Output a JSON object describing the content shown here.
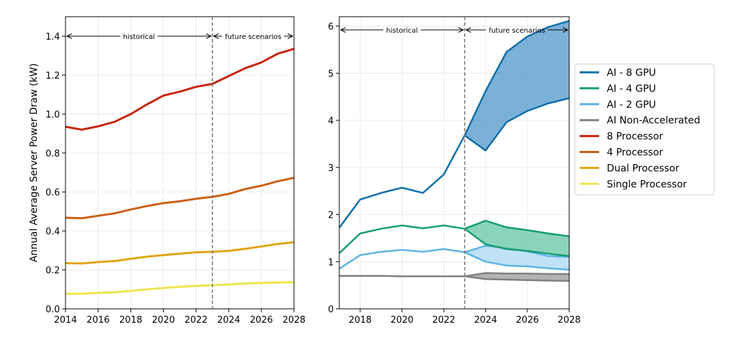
{
  "chart_data": [
    {
      "type": "line",
      "ylabel": "Annual Average Server Power Draw (kW)",
      "xlabel": "",
      "xlim": [
        2014,
        2028
      ],
      "ylim": [
        0,
        1.5
      ],
      "x_ticks": [
        "2014",
        "2016",
        "2018",
        "2020",
        "2022",
        "2024",
        "2026",
        "2028"
      ],
      "y_ticks": [
        "0.0",
        "0.2",
        "0.4",
        "0.6",
        "0.8",
        "1.0",
        "1.2",
        "1.4"
      ],
      "grid": true,
      "divider_x": 2023,
      "annotations": {
        "historical": "historical",
        "future": "future scenarios"
      },
      "x": [
        2014,
        2015,
        2016,
        2017,
        2018,
        2019,
        2020,
        2021,
        2022,
        2023,
        2024,
        2025,
        2026,
        2027,
        2028
      ],
      "series": [
        {
          "name": "8 Processor",
          "color": "#c8240e",
          "values": [
            0.935,
            0.92,
            0.937,
            0.96,
            1.0,
            1.05,
            1.095,
            1.115,
            1.14,
            1.155,
            1.195,
            1.235,
            1.265,
            1.31,
            1.335
          ]
        },
        {
          "name": "4 Processor",
          "color": "#cc5e14",
          "values": [
            0.468,
            0.465,
            0.478,
            0.49,
            0.51,
            0.528,
            0.543,
            0.552,
            0.565,
            0.575,
            0.59,
            0.615,
            0.632,
            0.655,
            0.673
          ]
        },
        {
          "name": "Dual Processor",
          "color": "#e2a414",
          "values": [
            0.235,
            0.233,
            0.24,
            0.245,
            0.257,
            0.268,
            0.276,
            0.283,
            0.29,
            0.293,
            0.298,
            0.308,
            0.32,
            0.333,
            0.342
          ]
        },
        {
          "name": "Single Processor",
          "color": "#ece64e",
          "values": [
            0.078,
            0.078,
            0.082,
            0.085,
            0.092,
            0.1,
            0.107,
            0.113,
            0.118,
            0.121,
            0.125,
            0.13,
            0.133,
            0.135,
            0.136
          ]
        }
      ]
    },
    {
      "type": "area",
      "ylabel": "",
      "xlabel": "",
      "xlim": [
        2017,
        2028
      ],
      "ylim": [
        0,
        6.2
      ],
      "x_ticks": [
        "2018",
        "2020",
        "2022",
        "2024",
        "2026",
        "2028"
      ],
      "y_ticks": [
        "0",
        "1",
        "2",
        "3",
        "4",
        "5",
        "6"
      ],
      "grid": true,
      "divider_x": 2023,
      "annotations": {
        "historical": "historical",
        "future": "future scenarios"
      },
      "legend_position": "outside-right",
      "legend": [
        "AI - 8 GPU",
        "AI - 4 GPU",
        "AI - 2 GPU",
        "AI Non-Accelerated",
        "8 Processor",
        "4 Processor",
        "Dual Processor",
        "Single Processor"
      ],
      "legend_colors": [
        "#0e6fa8",
        "#149c72",
        "#5cb3e4",
        "#808080",
        "#c8240e",
        "#cc5e14",
        "#e2a414",
        "#ece64e"
      ],
      "historical_x": [
        2017,
        2018,
        2019,
        2020,
        2021,
        2022,
        2023
      ],
      "future_x": [
        2023,
        2024,
        2025,
        2026,
        2027,
        2028
      ],
      "series": [
        {
          "name": "AI - 8 GPU",
          "color": "#0e6fa8",
          "fill": "#4f97c9",
          "historical": [
            1.72,
            2.32,
            2.46,
            2.57,
            2.46,
            2.85,
            3.68
          ],
          "future_high": [
            3.68,
            4.62,
            5.45,
            5.78,
            5.98,
            6.11
          ],
          "future_low": [
            3.68,
            3.36,
            3.96,
            4.2,
            4.36,
            4.47
          ]
        },
        {
          "name": "AI - 4 GPU",
          "color": "#149c72",
          "fill": "#63c6a2",
          "historical": [
            1.18,
            1.6,
            1.7,
            1.77,
            1.71,
            1.77,
            1.7
          ],
          "future_high": [
            1.7,
            1.87,
            1.73,
            1.67,
            1.6,
            1.54
          ],
          "future_low": [
            1.7,
            1.37,
            1.27,
            1.23,
            1.17,
            1.12
          ]
        },
        {
          "name": "AI - 2 GPU",
          "color": "#5cb3e4",
          "fill": "#a9d8f4",
          "historical": [
            0.85,
            1.14,
            1.21,
            1.25,
            1.21,
            1.27,
            1.2
          ],
          "future_high": [
            1.2,
            1.34,
            1.29,
            1.22,
            1.12,
            1.1
          ],
          "future_low": [
            1.2,
            1.0,
            0.92,
            0.9,
            0.86,
            0.83
          ]
        },
        {
          "name": "AI Non-Accelerated",
          "color": "#808080",
          "fill": "#9a9a9a",
          "historical": [
            0.7,
            0.7,
            0.7,
            0.69,
            0.69,
            0.69,
            0.69
          ],
          "future_high": [
            0.69,
            0.76,
            0.75,
            0.75,
            0.74,
            0.74
          ],
          "future_low": [
            0.69,
            0.63,
            0.62,
            0.61,
            0.6,
            0.59
          ]
        }
      ]
    }
  ]
}
